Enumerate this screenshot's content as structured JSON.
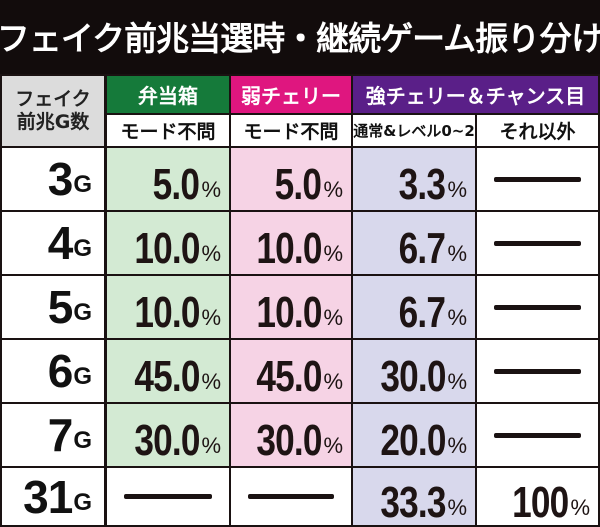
{
  "title": "フェイク前兆当選時・継続ゲーム振り分け",
  "colors": {
    "background": "#120c0c",
    "header_bento": "#157a3a",
    "header_jaku": "#df167f",
    "header_kyo": "#5a1f88",
    "cell_green": "#d3ead3",
    "cell_pink": "#f6d3e5",
    "cell_lavender": "#d8d8ec",
    "corner_gray": "#dcdcdc"
  },
  "table": {
    "corner_label_line1": "フェイク",
    "corner_label_line2": "前兆G数",
    "groups": [
      {
        "label": "弁当箱",
        "color": "#157a3a"
      },
      {
        "label": "弱チェリー",
        "color": "#df167f"
      },
      {
        "label": "強チェリー＆チャンス目",
        "color": "#5a1f88"
      }
    ],
    "subheaders": [
      "モード不問",
      "モード不問",
      "通常&レベル0~2",
      "それ以外"
    ],
    "rows": [
      {
        "num": "3",
        "unit": "G",
        "cells": [
          {
            "n": "5.0",
            "p": "%"
          },
          {
            "n": "5.0",
            "p": "%"
          },
          {
            "n": "3.3",
            "p": "%"
          },
          {
            "dash": true
          }
        ]
      },
      {
        "num": "4",
        "unit": "G",
        "cells": [
          {
            "n": "10.0",
            "p": "%"
          },
          {
            "n": "10.0",
            "p": "%"
          },
          {
            "n": "6.7",
            "p": "%"
          },
          {
            "dash": true
          }
        ]
      },
      {
        "num": "5",
        "unit": "G",
        "cells": [
          {
            "n": "10.0",
            "p": "%"
          },
          {
            "n": "10.0",
            "p": "%"
          },
          {
            "n": "6.7",
            "p": "%"
          },
          {
            "dash": true
          }
        ]
      },
      {
        "num": "6",
        "unit": "G",
        "cells": [
          {
            "n": "45.0",
            "p": "%"
          },
          {
            "n": "45.0",
            "p": "%"
          },
          {
            "n": "30.0",
            "p": "%"
          },
          {
            "dash": true
          }
        ]
      },
      {
        "num": "7",
        "unit": "G",
        "cells": [
          {
            "n": "30.0",
            "p": "%"
          },
          {
            "n": "30.0",
            "p": "%"
          },
          {
            "n": "20.0",
            "p": "%"
          },
          {
            "dash": true
          }
        ]
      },
      {
        "num": "31",
        "unit": "G",
        "cells": [
          {
            "dash": true
          },
          {
            "dash": true
          },
          {
            "n": "33.3",
            "p": "%"
          },
          {
            "n": "100",
            "p": "%"
          }
        ]
      }
    ]
  }
}
